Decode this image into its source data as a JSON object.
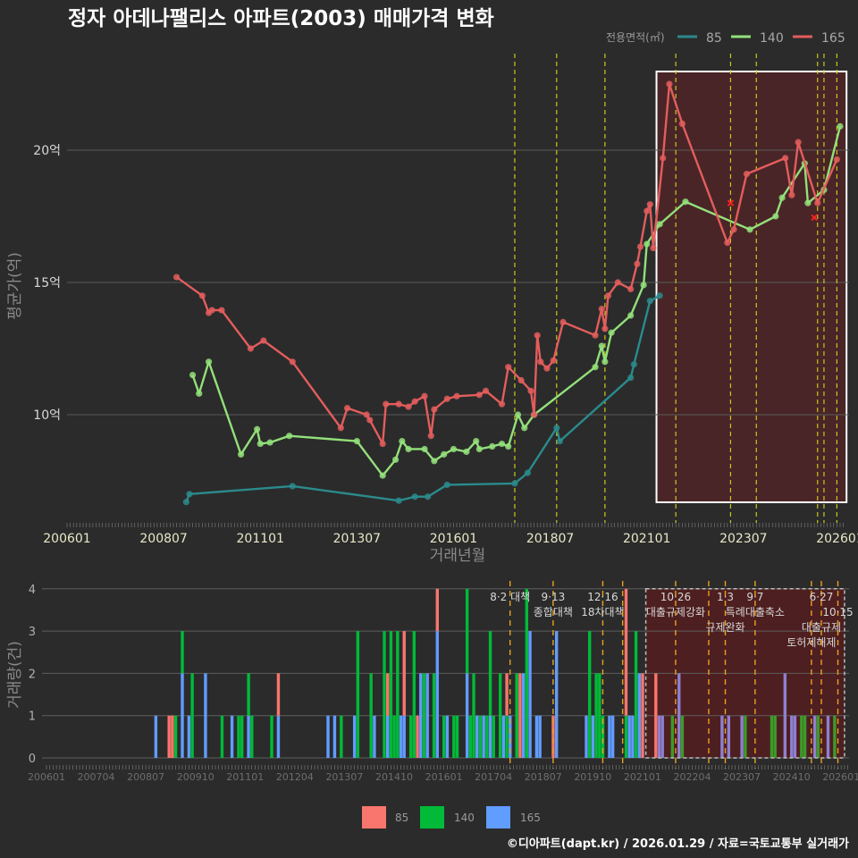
{
  "title": "정자 아데나팰리스 아파트(2003) 매매가격 변화",
  "legend_top": {
    "title": "전용면적(㎡)",
    "items": [
      {
        "label": "85",
        "color": "#2b8a8c"
      },
      {
        "label": "140",
        "color": "#93e07a"
      },
      {
        "label": "165",
        "color": "#e35d5d"
      }
    ]
  },
  "legend_bottom": {
    "items": [
      {
        "label": "85",
        "color": "#f8766d"
      },
      {
        "label": "140",
        "color": "#00ba38"
      },
      {
        "label": "165",
        "color": "#619cff"
      }
    ]
  },
  "footer": "©디아파트(dapt.kr) / 2026.01.29 / 자료=국토교통부 실거래가",
  "chart_data": [
    {
      "type": "line",
      "title": "정자 아데나팰리스 아파트(2003) 매매가격 변화",
      "xlabel": "거래년월",
      "ylabel": "평균가(억)",
      "ylim": [
        6.1,
        23.3
      ],
      "xlim": [
        "200601",
        "202602"
      ],
      "grid": true,
      "legend": "top-right",
      "yticks": [
        {
          "value": 10,
          "label": "10억"
        },
        {
          "value": 15,
          "label": "15억"
        },
        {
          "value": 20,
          "label": "20억"
        }
      ],
      "xticks": [
        "200601",
        "200807",
        "201101",
        "201307",
        "201601",
        "201807",
        "202101",
        "202307",
        "202601"
      ],
      "highlight_range": [
        "202104",
        "202603"
      ],
      "policy_lines": [
        "201708",
        "201809",
        "201912",
        "202110",
        "202303",
        "202311",
        "202506",
        "202508",
        "202512"
      ],
      "series": [
        {
          "name": "85",
          "points": [
            [
              "200902",
              6.7
            ],
            [
              "200903",
              7.0
            ],
            [
              "201111",
              7.3
            ],
            [
              "201408",
              6.75
            ],
            [
              "201501",
              6.9
            ],
            [
              "201505",
              6.9
            ],
            [
              "201511",
              7.35
            ],
            [
              "201708",
              7.4
            ],
            [
              "201712",
              7.8
            ],
            [
              "201809",
              9.5
            ],
            [
              "201810",
              9.0
            ],
            [
              "202008",
              11.4
            ],
            [
              "202009",
              11.9
            ],
            [
              "202102",
              14.3
            ],
            [
              "202105",
              14.5
            ]
          ]
        },
        {
          "name": "140",
          "points": [
            [
              "200904",
              11.5
            ],
            [
              "200906",
              10.8
            ],
            [
              "200909",
              12.0
            ],
            [
              "201007",
              8.5
            ],
            [
              "201012",
              9.45
            ],
            [
              "201101",
              8.9
            ],
            [
              "201104",
              8.95
            ],
            [
              "201110",
              9.2
            ],
            [
              "201307",
              9.0
            ],
            [
              "201403",
              7.7
            ],
            [
              "201407",
              8.3
            ],
            [
              "201409",
              9.0
            ],
            [
              "201411",
              8.7
            ],
            [
              "201504",
              8.7
            ],
            [
              "201507",
              8.25
            ],
            [
              "201510",
              8.5
            ],
            [
              "201601",
              8.7
            ],
            [
              "201605",
              8.6
            ],
            [
              "201608",
              9.0
            ],
            [
              "201609",
              8.7
            ],
            [
              "201701",
              8.8
            ],
            [
              "201704",
              8.9
            ],
            [
              "201706",
              8.8
            ],
            [
              "201709",
              10.0
            ],
            [
              "201711",
              9.5
            ],
            [
              "201802",
              10.0
            ],
            [
              "201909",
              11.8
            ],
            [
              "201911",
              12.6
            ],
            [
              "201912",
              12.0
            ],
            [
              "202002",
              13.1
            ],
            [
              "202008",
              13.75
            ],
            [
              "202012",
              14.9
            ],
            [
              "202101",
              16.45
            ],
            [
              "202105",
              17.2
            ],
            [
              "202201",
              18.05
            ],
            [
              "202309",
              17.0
            ],
            [
              "202405",
              17.5
            ],
            [
              "202407",
              18.2
            ],
            [
              "202502",
              19.5
            ],
            [
              "202503",
              18.0
            ],
            [
              "202508",
              18.5
            ],
            [
              "202601",
              20.9
            ]
          ]
        },
        {
          "name": "165",
          "points": [
            [
              "200811",
              15.2
            ],
            [
              "200907",
              14.5
            ],
            [
              "200909",
              13.85
            ],
            [
              "200910",
              13.95
            ],
            [
              "201001",
              13.95
            ],
            [
              "201010",
              12.5
            ],
            [
              "201102",
              12.8
            ],
            [
              "201111",
              12.0
            ],
            [
              "201302",
              9.5
            ],
            [
              "201304",
              10.25
            ],
            [
              "201310",
              10.0
            ],
            [
              "201311",
              9.8
            ],
            [
              "201403",
              8.9
            ],
            [
              "201404",
              10.4
            ],
            [
              "201408",
              10.4
            ],
            [
              "201411",
              10.3
            ],
            [
              "201501",
              10.5
            ],
            [
              "201504",
              10.7
            ],
            [
              "201506",
              9.2
            ],
            [
              "201507",
              10.2
            ],
            [
              "201511",
              10.6
            ],
            [
              "201602",
              10.7
            ],
            [
              "201609",
              10.75
            ],
            [
              "201611",
              10.9
            ],
            [
              "201704",
              10.4
            ],
            [
              "201706",
              11.8
            ],
            [
              "201710",
              11.3
            ],
            [
              "201801",
              10.9
            ],
            [
              "201802",
              10.0
            ],
            [
              "201803",
              13.0
            ],
            [
              "201804",
              12.0
            ],
            [
              "201806",
              11.75
            ],
            [
              "201808",
              12.05
            ],
            [
              "201811",
              13.5
            ],
            [
              "201909",
              13.0
            ],
            [
              "201911",
              14.0
            ],
            [
              "201912",
              13.25
            ],
            [
              "202001",
              14.5
            ],
            [
              "202004",
              15.0
            ],
            [
              "202008",
              14.75
            ],
            [
              "202010",
              15.7
            ],
            [
              "202011",
              16.35
            ],
            [
              "202101",
              17.7
            ],
            [
              "202102",
              17.95
            ],
            [
              "202103",
              16.3
            ],
            [
              "202106",
              19.7
            ],
            [
              "202108",
              22.5
            ],
            [
              "202112",
              21.0
            ],
            [
              "202302",
              16.5
            ],
            [
              "202304",
              17.0
            ],
            [
              "202308",
              19.1
            ],
            [
              "202408",
              19.7
            ],
            [
              "202410",
              18.3
            ],
            [
              "202412",
              20.3
            ],
            [
              "202506",
              18.0
            ],
            [
              "202512",
              19.65
            ]
          ]
        }
      ],
      "cancelled_marks": [
        [
          "202303",
          18.0
        ],
        [
          "202505",
          17.45
        ]
      ]
    },
    {
      "type": "bar",
      "stacked": true,
      "xlabel": "",
      "ylabel": "거래량(건)",
      "ylim": [
        0,
        4
      ],
      "yticks": [
        "0",
        "1",
        "2",
        "3",
        "4"
      ],
      "xticks": [
        "200601",
        "200704",
        "200807",
        "200910",
        "201101",
        "201204",
        "201307",
        "201410",
        "201601",
        "201704",
        "201807",
        "201910",
        "202101",
        "202204",
        "202307",
        "202410",
        "202601"
      ],
      "highlight_range": [
        "202102",
        "202602"
      ],
      "series_names": [
        "85",
        "140",
        "165"
      ],
      "values_columns": [
        "month",
        "85",
        "140",
        "165"
      ],
      "values": [
        [
          "200810",
          0,
          0,
          1
        ],
        [
          "200902",
          1,
          0,
          0
        ],
        [
          "200903",
          1,
          0,
          0
        ],
        [
          "200904",
          0,
          1,
          0
        ],
        [
          "200906",
          0,
          1,
          2
        ],
        [
          "200908",
          0,
          0,
          1
        ],
        [
          "200909",
          0,
          2,
          0
        ],
        [
          "201001",
          0,
          0,
          2
        ],
        [
          "201006",
          0,
          1,
          0
        ],
        [
          "201009",
          0,
          0,
          1
        ],
        [
          "201011",
          0,
          1,
          0
        ],
        [
          "201012",
          0,
          1,
          0
        ],
        [
          "201102",
          0,
          1,
          1
        ],
        [
          "201103",
          0,
          1,
          0
        ],
        [
          "201109",
          0,
          1,
          0
        ],
        [
          "201111",
          1,
          0,
          1
        ],
        [
          "201302",
          0,
          0,
          1
        ],
        [
          "201304",
          0,
          0,
          1
        ],
        [
          "201306",
          0,
          1,
          0
        ],
        [
          "201310",
          0,
          0,
          1
        ],
        [
          "201311",
          0,
          3,
          0
        ],
        [
          "201403",
          0,
          2,
          0
        ],
        [
          "201404",
          0,
          0,
          1
        ],
        [
          "201407",
          0,
          3,
          0
        ],
        [
          "201408",
          1,
          0,
          1
        ],
        [
          "201409",
          0,
          3,
          0
        ],
        [
          "201410",
          0,
          1,
          0
        ],
        [
          "201411",
          0,
          3,
          0
        ],
        [
          "201412",
          0,
          0,
          1
        ],
        [
          "201501",
          2,
          0,
          1
        ],
        [
          "201503",
          0,
          1,
          0
        ],
        [
          "201504",
          0,
          3,
          0
        ],
        [
          "201505",
          1,
          0,
          0
        ],
        [
          "201506",
          0,
          0,
          2
        ],
        [
          "201507",
          0,
          2,
          0
        ],
        [
          "201508",
          0,
          0,
          2
        ],
        [
          "201510",
          0,
          2,
          0
        ],
        [
          "201511",
          1,
          0,
          3
        ],
        [
          "201601",
          0,
          1,
          0
        ],
        [
          "201602",
          0,
          0,
          1
        ],
        [
          "201604",
          0,
          1,
          0
        ],
        [
          "201605",
          0,
          1,
          0
        ],
        [
          "201608",
          0,
          2,
          2
        ],
        [
          "201609",
          0,
          1,
          0
        ],
        [
          "201610",
          0,
          2,
          0
        ],
        [
          "201611",
          0,
          0,
          1
        ],
        [
          "201612",
          0,
          1,
          0
        ],
        [
          "201701",
          0,
          0,
          1
        ],
        [
          "201702",
          0,
          1,
          0
        ],
        [
          "201703",
          0,
          2,
          1
        ],
        [
          "201704",
          0,
          1,
          0
        ],
        [
          "201706",
          0,
          2,
          0
        ],
        [
          "201707",
          0,
          0,
          1
        ],
        [
          "201708",
          1,
          1,
          0
        ],
        [
          "201709",
          0,
          0,
          1
        ],
        [
          "201711",
          0,
          2,
          0
        ],
        [
          "201712",
          2,
          0,
          0
        ],
        [
          "201801",
          0,
          0,
          2
        ],
        [
          "201802",
          0,
          4,
          0
        ],
        [
          "201803",
          0,
          0,
          3
        ],
        [
          "201805",
          0,
          0,
          1
        ],
        [
          "201806",
          0,
          0,
          1
        ],
        [
          "201810",
          1,
          0,
          0
        ],
        [
          "201811",
          0,
          0,
          3
        ],
        [
          "201908",
          0,
          0,
          1
        ],
        [
          "201909",
          0,
          3,
          0
        ],
        [
          "201910",
          0,
          0,
          1
        ],
        [
          "201911",
          0,
          2,
          0
        ],
        [
          "201912",
          0,
          2,
          0
        ],
        [
          "202001",
          0,
          1,
          0
        ],
        [
          "202003",
          0,
          0,
          1
        ],
        [
          "202004",
          0,
          0,
          1
        ],
        [
          "202008",
          3,
          1,
          0
        ],
        [
          "202009",
          0,
          0,
          1
        ],
        [
          "202010",
          0,
          0,
          1
        ],
        [
          "202011",
          0,
          3,
          0
        ],
        [
          "202012",
          0,
          0,
          2
        ],
        [
          "202101",
          2,
          0,
          0
        ],
        [
          "202105",
          2,
          0,
          0
        ],
        [
          "202106",
          0,
          0,
          1
        ],
        [
          "202107",
          0,
          0,
          1
        ],
        [
          "202110",
          0,
          1,
          0
        ],
        [
          "202112",
          0,
          0,
          2
        ],
        [
          "202201",
          0,
          1,
          0
        ],
        [
          "202301",
          0,
          0,
          1
        ],
        [
          "202303",
          0,
          0,
          1
        ],
        [
          "202307",
          0,
          0,
          1
        ],
        [
          "202308",
          0,
          1,
          0
        ],
        [
          "202404",
          0,
          1,
          0
        ],
        [
          "202405",
          0,
          1,
          0
        ],
        [
          "202408",
          0,
          0,
          2
        ],
        [
          "202410",
          0,
          0,
          1
        ],
        [
          "202411",
          0,
          0,
          1
        ],
        [
          "202501",
          0,
          1,
          0
        ],
        [
          "202502",
          0,
          1,
          0
        ],
        [
          "202505",
          0,
          0,
          1
        ],
        [
          "202506",
          0,
          1,
          0
        ],
        [
          "202509",
          0,
          0,
          1
        ],
        [
          "202511",
          0,
          1,
          0
        ]
      ],
      "policy_lines": [
        {
          "month": "201709",
          "date": "8·2 대책",
          "name": ""
        },
        {
          "month": "201810",
          "date": "9·13",
          "name": "종합대책"
        },
        {
          "month": "202001",
          "date": "12·16",
          "name": "18차대책"
        },
        {
          "month": "202007",
          "date": "",
          "name": ""
        },
        {
          "month": "202111",
          "date": "10·26",
          "name": "대출규제강화"
        },
        {
          "month": "202209",
          "date": "",
          "name": ""
        },
        {
          "month": "202302",
          "date": "1·3",
          "name": "규제완화"
        },
        {
          "month": "202311",
          "date": "9·7",
          "name": "특례대출축소"
        },
        {
          "month": "202504",
          "date": "",
          "name": "토허제해제"
        },
        {
          "month": "202507",
          "date": "6·27",
          "name": "대출규제"
        },
        {
          "month": "202512",
          "date": "10·15",
          "name": ""
        }
      ]
    }
  ]
}
